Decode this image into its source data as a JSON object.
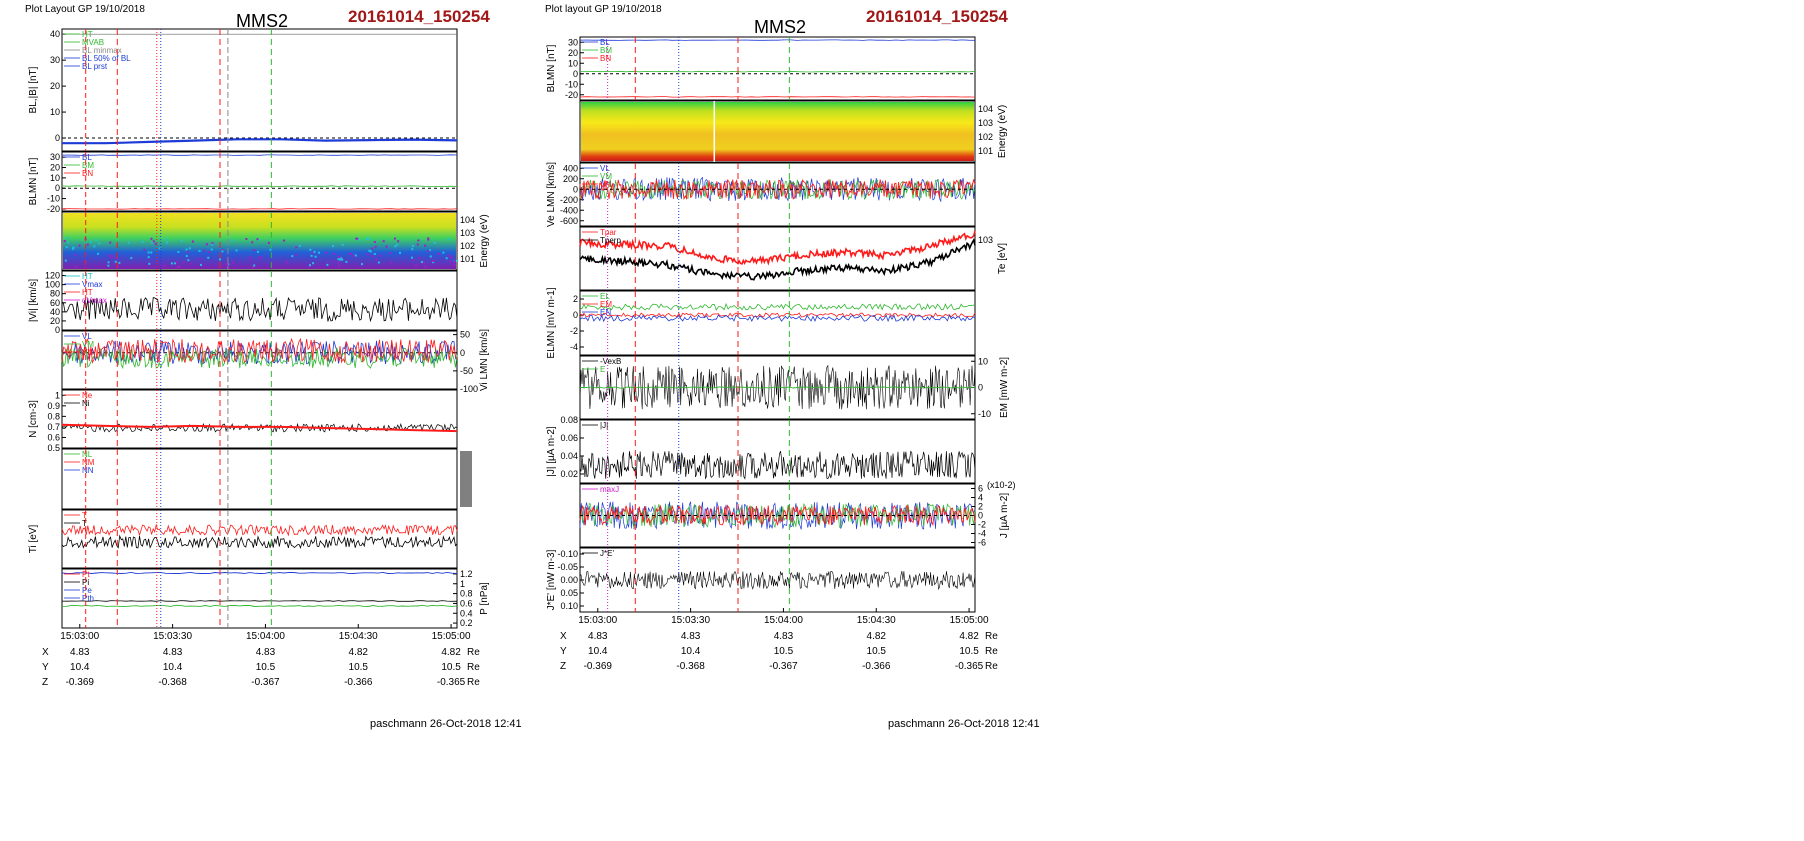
{
  "colors": {
    "title_red": "#a01818",
    "blue": "#1d3bd6",
    "red": "#ff1a1a",
    "green": "#2fb82f",
    "magenta": "#d21bd2",
    "gray": "#888888"
  },
  "left": {
    "header": "Plot Layout GP 19/10/2018",
    "title": "MMS2",
    "stamp": "20161014_150254",
    "footer": "paschmann 26-Oct-2018 12:41"
  },
  "right": {
    "header": "Plot layout GP 19/10/2018",
    "title": "MMS2",
    "stamp": "20161014_150254",
    "footer": "paschmann 26-Oct-2018 12:41"
  },
  "time_ticks": [
    "15:03:00",
    "15:03:30",
    "15:04:00",
    "15:04:30",
    "15:05:00"
  ],
  "ephemeris": {
    "rows": [
      {
        "label": "X",
        "values": [
          "4.83",
          "4.83",
          "4.83",
          "4.82",
          "4.82"
        ],
        "unit": "Re"
      },
      {
        "label": "Y",
        "values": [
          "10.4",
          "10.4",
          "10.5",
          "10.5",
          "10.5"
        ],
        "unit": "Re"
      },
      {
        "label": "Z",
        "values": [
          "-0.369",
          "-0.368",
          "-0.367",
          "-0.366",
          "-0.365"
        ],
        "unit": "Re"
      }
    ]
  },
  "chart_data": [
    {
      "type": "line",
      "panel": "left-1",
      "ylabel": "BL,|B| [nT]",
      "ylim": [
        -5,
        42
      ],
      "yticks": [
        0,
        10,
        20,
        30,
        40
      ],
      "legend": [
        "HT",
        "MVAB",
        "BL minmax",
        "BL 50% of BL",
        "BL prst"
      ],
      "series": [
        {
          "name": "BL",
          "color": "#1d3bd6",
          "values": [
            -2,
            -2,
            -1.5,
            -1,
            -0.5,
            -0.5,
            -1,
            -0.8,
            -0.6,
            -0.9
          ]
        }
      ]
    },
    {
      "type": "line",
      "panel": "left-2",
      "ylabel": "BLMN [nT]",
      "ylim": [
        -22,
        35
      ],
      "yticks": [
        -20,
        -10,
        0,
        10,
        20,
        30
      ],
      "legend": [
        "BL",
        "BM",
        "BN"
      ]
    },
    {
      "type": "heatmap",
      "panel": "left-3",
      "ylabel": "Energy (eV)",
      "yticks": [
        "10^4",
        "10^3",
        "10^2",
        "10^1"
      ]
    },
    {
      "type": "line",
      "panel": "left-4",
      "ylabel": "|Vi| [km/s]",
      "ylim": [
        0,
        130
      ],
      "yticks": [
        0,
        20,
        40,
        60,
        80,
        100,
        120
      ],
      "legend": [
        "HT",
        "Vmax",
        "HT",
        "dVmax"
      ]
    },
    {
      "type": "line",
      "panel": "left-5",
      "ylabel": "Vi LMN [km/s]",
      "ylim": [
        -100,
        60
      ],
      "yticks": [
        50,
        0,
        -50,
        -100
      ],
      "legend": [
        "VL",
        "VM",
        "VN"
      ]
    },
    {
      "type": "line",
      "panel": "left-6",
      "ylabel": "N [cm-3]",
      "ylim": [
        0.5,
        1.05
      ],
      "yticks": [
        0.5,
        0.6,
        0.7,
        0.8,
        0.9,
        1.0
      ],
      "legend": [
        "Ne",
        "Ni"
      ],
      "series": [
        {
          "name": "Ne",
          "color": "#ff1a1a",
          "values": [
            0.72,
            0.71,
            0.7,
            0.71,
            0.7,
            0.7,
            0.69,
            0.68,
            0.67,
            0.66
          ]
        }
      ]
    },
    {
      "type": "line",
      "panel": "left-7",
      "legend": [
        "NL",
        "NM",
        "NN"
      ]
    },
    {
      "type": "line",
      "panel": "left-8",
      "ylabel": "Ti [eV]",
      "legend": [
        "T",
        "T"
      ]
    },
    {
      "type": "line",
      "panel": "left-9",
      "ylabel": "P [nPa]",
      "ylim": [
        0.1,
        1.3
      ],
      "yticks": [
        1.2,
        1.0,
        0.8,
        0.6,
        0.4,
        0.2
      ],
      "legend": [
        "Pt",
        "Pi",
        "Pe",
        "Pth"
      ]
    },
    {
      "type": "line",
      "panel": "right-1",
      "ylabel": "BLMN [nT]",
      "ylim": [
        -25,
        35
      ],
      "yticks": [
        30,
        20,
        10,
        0,
        -10,
        -20
      ],
      "legend": [
        "BL",
        "BM",
        "BN"
      ]
    },
    {
      "type": "heatmap",
      "panel": "right-2",
      "ylabel": "Energy (eV)",
      "yticks": [
        "10^4",
        "10^3",
        "10^2",
        "10^1"
      ]
    },
    {
      "type": "line",
      "panel": "right-3",
      "ylabel": "Ve LMN [km/s]",
      "ylim": [
        -700,
        500
      ],
      "yticks": [
        400,
        200,
        0,
        -200,
        -400,
        -600
      ],
      "legend": [
        "VL",
        "VM",
        "VN"
      ]
    },
    {
      "type": "line",
      "panel": "right-4",
      "ylabel": "Te [eV]",
      "yticks": [
        "10^3"
      ],
      "legend": [
        "Tpar",
        "Tperp"
      ],
      "series": [
        {
          "name": "Tpar",
          "color": "#ff1a1a",
          "values": [
            0.75,
            0.72,
            0.7,
            0.5,
            0.45,
            0.55,
            0.6,
            0.55,
            0.7,
            0.9
          ]
        },
        {
          "name": "Tperp",
          "color": "#000000",
          "values": [
            0.5,
            0.45,
            0.4,
            0.25,
            0.2,
            0.3,
            0.35,
            0.3,
            0.45,
            0.75
          ]
        }
      ]
    },
    {
      "type": "line",
      "panel": "right-5",
      "ylabel": "ELMN [mV m-1]",
      "ylim": [
        -5,
        3
      ],
      "yticks": [
        2,
        0,
        -2,
        -4
      ],
      "legend": [
        "EL",
        "EM",
        "EN"
      ]
    },
    {
      "type": "line",
      "panel": "right-6",
      "ylabel": "EM [mW m-2]",
      "ylim": [
        -12,
        12
      ],
      "yticks": [
        10,
        0,
        -10
      ],
      "legend": [
        "-VexB",
        "E"
      ]
    },
    {
      "type": "line",
      "panel": "right-7",
      "ylabel": "|J| [µA m-2]",
      "ylim": [
        0.01,
        0.08
      ],
      "yticks": [
        0.08,
        0.06,
        0.04,
        0.02
      ],
      "legend": [
        "|J|"
      ]
    },
    {
      "type": "line",
      "panel": "right-8",
      "ylabel": "J [µA m-2]",
      "yscale_label": "(x10-2)",
      "ylim": [
        -7,
        7
      ],
      "yticks": [
        6,
        4,
        2,
        0,
        -2,
        -4,
        -6
      ],
      "legend": [
        "maxJ"
      ]
    },
    {
      "type": "line",
      "panel": "right-9",
      "ylabel": "J*E' [nW m-3]",
      "ylim": [
        -0.12,
        0.12
      ],
      "yticks": [
        "-0.10",
        "-0.05",
        "0.00",
        "0.05",
        "0.10"
      ],
      "legend": [
        "J*E'"
      ]
    }
  ]
}
